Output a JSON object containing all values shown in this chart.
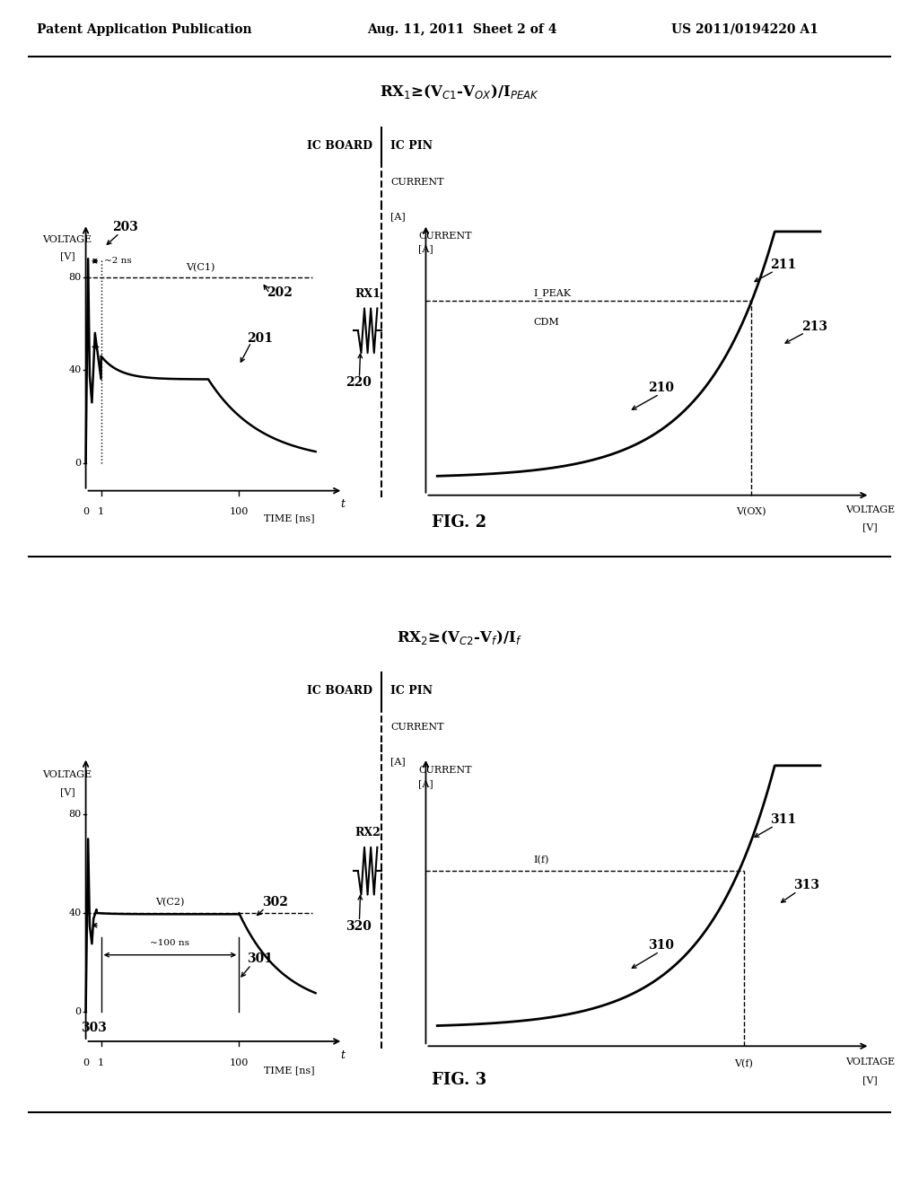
{
  "header_left": "Patent Application Publication",
  "header_mid": "Aug. 11, 2011  Sheet 2 of 4",
  "header_right": "US 2011/0194220 A1",
  "background": "#ffffff",
  "fig2_formula": "RX$_1$≥(V$_{C1}$-V$_{OX}$)/I$_{PEAK}$",
  "fig3_formula": "RX$_2$≥(V$_{C2}$-V$_f$)/I$_f$"
}
